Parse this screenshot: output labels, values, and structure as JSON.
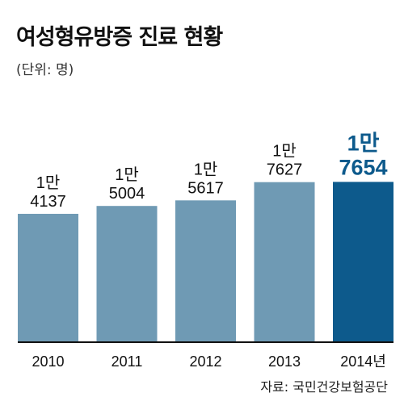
{
  "title": "여성형유방증 진료 현황",
  "unit_label": "(단위: 명)",
  "source": "자료: 국민건강보험공단",
  "colors": {
    "bar": "#6f9ab4",
    "bar_highlight": "#0d5a8c",
    "label": "#111111",
    "label_highlight": "#0d5a8c",
    "baseline": "#111111"
  },
  "chart_data": {
    "type": "bar",
    "title": "여성형유방증 진료 현황",
    "unit": "(단위: 명)",
    "categories": [
      "2010",
      "2011",
      "2012",
      "2013",
      "2014년"
    ],
    "values": [
      14137,
      15004,
      15617,
      17627,
      17654
    ],
    "value_labels": [
      [
        "1만",
        "4137"
      ],
      [
        "1만",
        "5004"
      ],
      [
        "1만",
        "5617"
      ],
      [
        "1만",
        "7627"
      ],
      [
        "1만",
        "7654"
      ]
    ],
    "highlight_index": 4,
    "ylim": [
      0,
      22000
    ],
    "grid": false,
    "legend": "none"
  }
}
